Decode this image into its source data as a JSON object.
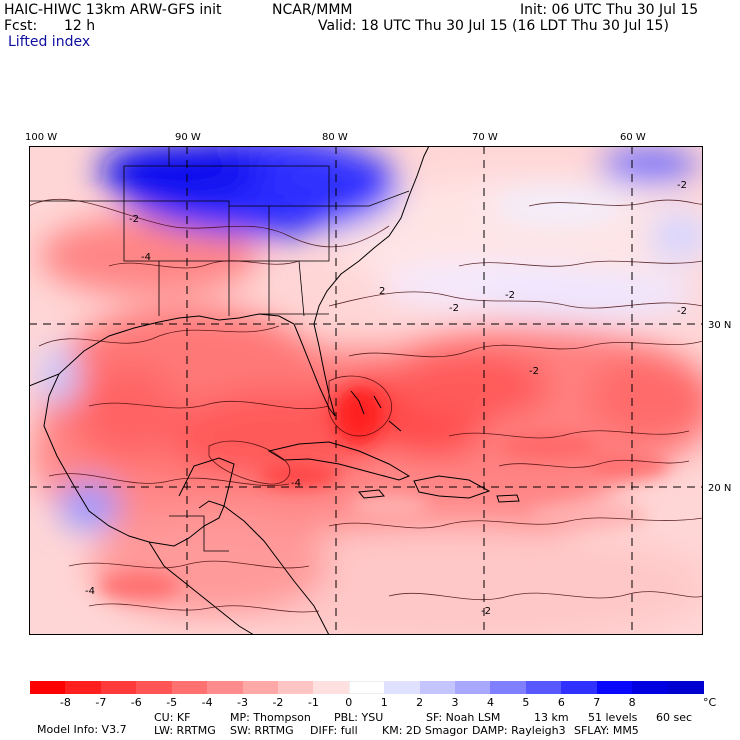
{
  "header": {
    "model_title": "HAIC-HIWC 13km ARW-GFS init",
    "center": "NCAR/MMM",
    "init": "Init: 06 UTC Thu 30 Jul 15",
    "fcst_label": "Fcst:",
    "fcst_value": "12 h",
    "valid": "Valid: 18 UTC Thu 30 Jul 15 (16 LDT Thu 30 Jul 15)",
    "field": "Lifted index"
  },
  "map": {
    "lon_labels": [
      "100 W",
      "90 W",
      "80 W",
      "70 W",
      "60 W"
    ],
    "lat_labels": [
      "30 N",
      "20 N"
    ],
    "contour_labels": [
      "-2",
      "-2",
      "-4",
      "-2",
      "-2",
      "-2",
      "2",
      "-2",
      "-4",
      "-2",
      "-4"
    ]
  },
  "colorbar": {
    "ticks": [
      "-8",
      "-7",
      "-6",
      "-5",
      "-4",
      "-3",
      "-2",
      "-1",
      "0",
      "1",
      "2",
      "3",
      "4",
      "5",
      "6",
      "7",
      "8"
    ],
    "unit": "°C",
    "colors": [
      "#ff0000",
      "#ff1f1f",
      "#ff3a3a",
      "#ff5555",
      "#ff7070",
      "#ff8c8c",
      "#ffa8a8",
      "#ffc4c4",
      "#ffe0e0",
      "#ffffff",
      "#e0e0ff",
      "#c4c4ff",
      "#a8a8ff",
      "#8080ff",
      "#5858ff",
      "#3030ff",
      "#0808ff",
      "#0000e0",
      "#0000d0"
    ]
  },
  "model_info": {
    "line1": [
      "Model Info: V3.7",
      "CU: KF",
      "MP: Thompson",
      "PBL: YSU",
      "SF: Noah LSM",
      "13 km",
      "51 levels",
      "60 sec"
    ],
    "line2": [
      "LW: RRTMG",
      "SW: RRTMG",
      "DIFF: full",
      "KM: 2D Smagor",
      "DAMP: Rayleigh3",
      "SFLAY: MM5"
    ]
  }
}
